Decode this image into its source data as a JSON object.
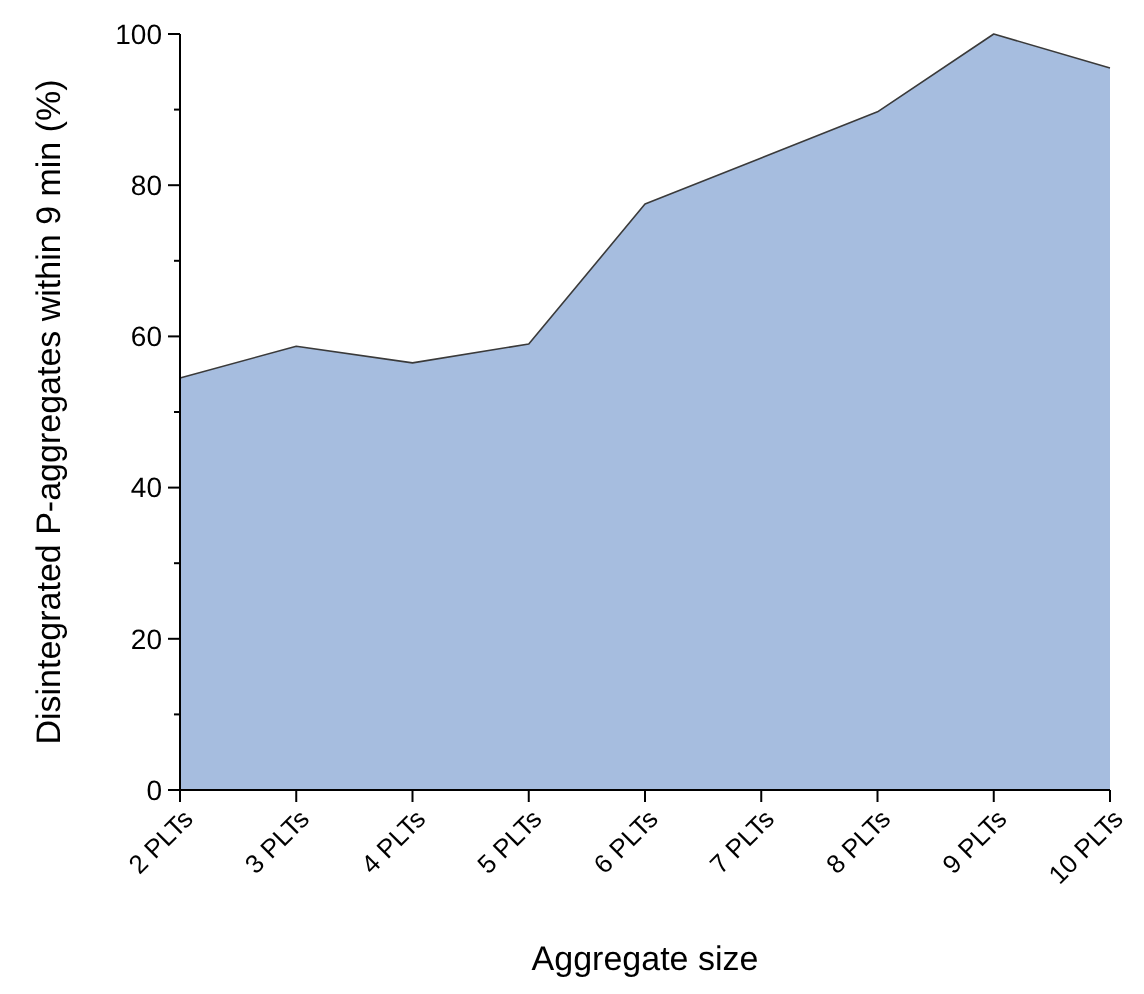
{
  "chart_data": {
    "type": "area",
    "xlabel": "Aggregate size",
    "ylabel": "Disintegrated P-aggregates within 9 min (%)",
    "categories": [
      "2 PLTs",
      "3 PLTs",
      "4 PLTs",
      "5 PLTs",
      "6 PLTs",
      "7 PLTs",
      "8 PLTs",
      "9 PLTs",
      "10 PLTs"
    ],
    "series": [
      {
        "color": "#a6bddf",
        "values": [
          54.5,
          58.7,
          56.5,
          59,
          77.5,
          83.6,
          89.7,
          100,
          95.5
        ]
      }
    ],
    "ylim": [
      0,
      100
    ],
    "yticks": [
      0,
      {
        "value": 10,
        "label": null
      },
      20,
      {
        "value": 30,
        "label": null
      },
      40,
      {
        "value": 50,
        "label": null
      },
      60,
      {
        "value": 70,
        "label": null
      },
      80,
      {
        "value": 90,
        "label": null
      },
      100
    ],
    "grid": false
  }
}
